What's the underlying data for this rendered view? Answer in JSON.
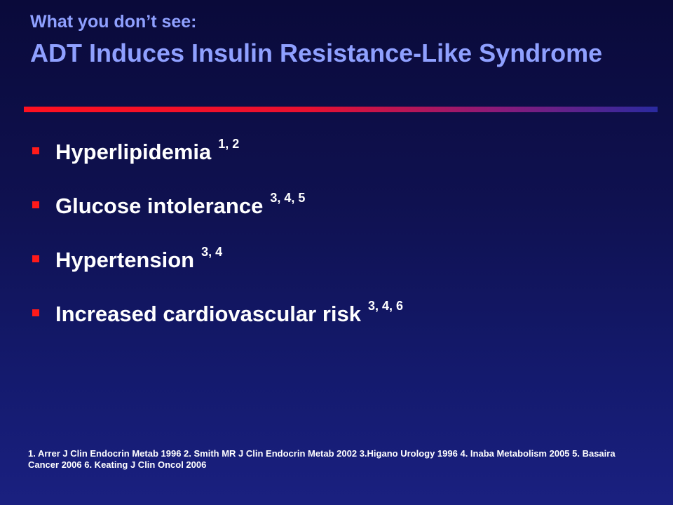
{
  "slide": {
    "kicker": "What you don’t see:",
    "title": "ADT Induces Insulin Resistance-Like Syndrome",
    "colors": {
      "title": "#8fa0ff",
      "bullet_marker": "#ff1a1a",
      "rule_start": "#ff1020",
      "rule_end": "#2a2aa0",
      "background": "#10125a"
    },
    "bullets": [
      {
        "text": "Hyperlipidemia",
        "refs": "1, 2"
      },
      {
        "text": "Glucose intolerance",
        "refs": "3, 4, 5"
      },
      {
        "text": "Hypertension",
        "refs": "3, 4"
      },
      {
        "text": "Increased cardiovascular risk",
        "refs": "3, 4, 6"
      }
    ],
    "footnote": "1.  Arrer J Clin Endocrin Metab 1996 2. Smith MR J Clin Endocrin Metab 2002  3.Higano Urology 1996  4. Inaba Metabolism 2005  5. Basaira Cancer 2006 6. Keating J Clin Oncol 2006"
  }
}
